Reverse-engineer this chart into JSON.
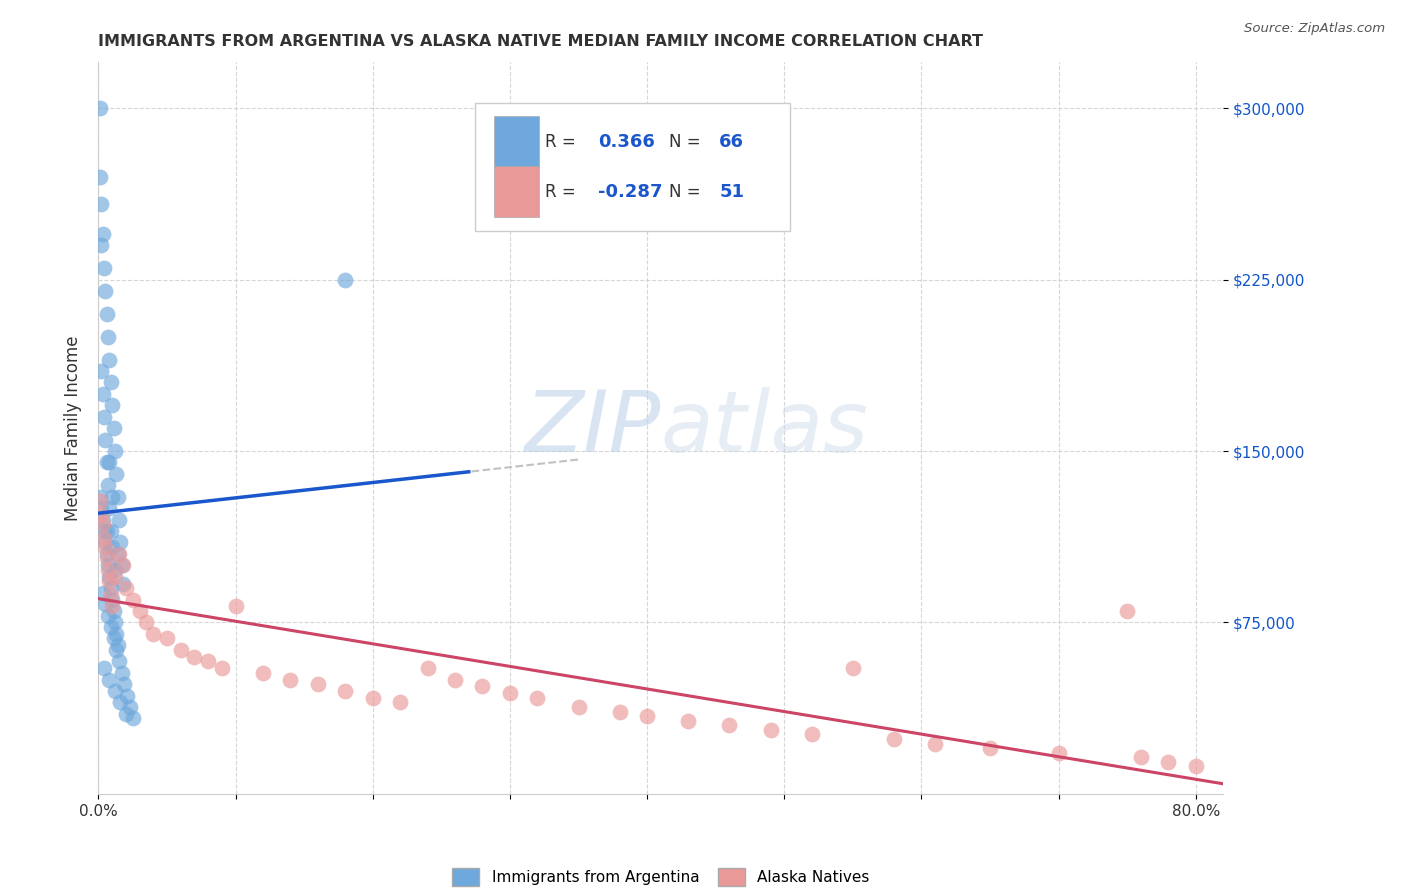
{
  "title": "IMMIGRANTS FROM ARGENTINA VS ALASKA NATIVE MEDIAN FAMILY INCOME CORRELATION CHART",
  "source": "Source: ZipAtlas.com",
  "ylabel": "Median Family Income",
  "ytick_labels": [
    "$75,000",
    "$150,000",
    "$225,000",
    "$300,000"
  ],
  "ytick_values": [
    75000,
    150000,
    225000,
    300000
  ],
  "ymin": 0,
  "ymax": 320000,
  "xmin": 0.0,
  "xmax": 0.82,
  "blue_R": 0.366,
  "blue_N": 66,
  "pink_R": -0.287,
  "pink_N": 51,
  "blue_color": "#6fa8dc",
  "pink_color": "#ea9999",
  "blue_line_color": "#1a56cc",
  "pink_line_color": "#cc4466",
  "dash_color": "#bbbbbb",
  "legend_label_blue": "Immigrants from Argentina",
  "legend_label_pink": "Alaska Natives",
  "watermark_color": "#d0e4f7",
  "background_color": "#ffffff",
  "grid_color": "#cccccc",
  "title_color": "#333333",
  "source_color": "#555555",
  "ytick_color": "#1155cc",
  "blue_scatter_x": [
    0.001,
    0.001,
    0.002,
    0.002,
    0.003,
    0.004,
    0.005,
    0.006,
    0.007,
    0.008,
    0.009,
    0.01,
    0.011,
    0.012,
    0.013,
    0.014,
    0.015,
    0.016,
    0.017,
    0.018,
    0.002,
    0.003,
    0.004,
    0.005,
    0.006,
    0.007,
    0.008,
    0.009,
    0.01,
    0.012,
    0.001,
    0.002,
    0.003,
    0.004,
    0.005,
    0.006,
    0.007,
    0.008,
    0.009,
    0.01,
    0.011,
    0.012,
    0.013,
    0.014,
    0.003,
    0.005,
    0.007,
    0.009,
    0.011,
    0.013,
    0.015,
    0.017,
    0.019,
    0.021,
    0.023,
    0.025,
    0.004,
    0.008,
    0.012,
    0.016,
    0.02,
    0.014,
    0.006,
    0.18,
    0.008,
    0.01
  ],
  "blue_scatter_y": [
    270000,
    300000,
    258000,
    240000,
    245000,
    230000,
    220000,
    210000,
    200000,
    190000,
    180000,
    170000,
    160000,
    150000,
    140000,
    130000,
    120000,
    110000,
    100000,
    92000,
    185000,
    175000,
    165000,
    155000,
    145000,
    135000,
    125000,
    115000,
    108000,
    98000,
    130000,
    125000,
    120000,
    115000,
    110000,
    105000,
    100000,
    95000,
    90000,
    85000,
    80000,
    75000,
    70000,
    65000,
    88000,
    83000,
    78000,
    73000,
    68000,
    63000,
    58000,
    53000,
    48000,
    43000,
    38000,
    33000,
    55000,
    50000,
    45000,
    40000,
    35000,
    105000,
    115000,
    225000,
    145000,
    130000
  ],
  "pink_scatter_x": [
    0.001,
    0.002,
    0.003,
    0.004,
    0.005,
    0.006,
    0.007,
    0.008,
    0.009,
    0.01,
    0.012,
    0.015,
    0.018,
    0.02,
    0.025,
    0.03,
    0.035,
    0.04,
    0.05,
    0.06,
    0.07,
    0.08,
    0.09,
    0.1,
    0.12,
    0.14,
    0.16,
    0.18,
    0.2,
    0.22,
    0.24,
    0.26,
    0.28,
    0.3,
    0.32,
    0.35,
    0.38,
    0.4,
    0.43,
    0.46,
    0.49,
    0.52,
    0.55,
    0.58,
    0.61,
    0.65,
    0.7,
    0.75,
    0.76,
    0.78,
    0.8
  ],
  "pink_scatter_y": [
    128000,
    122000,
    118000,
    112000,
    108000,
    103000,
    98000,
    93000,
    87000,
    82000,
    95000,
    105000,
    100000,
    90000,
    85000,
    80000,
    75000,
    70000,
    68000,
    63000,
    60000,
    58000,
    55000,
    82000,
    53000,
    50000,
    48000,
    45000,
    42000,
    40000,
    55000,
    50000,
    47000,
    44000,
    42000,
    38000,
    36000,
    34000,
    32000,
    30000,
    28000,
    26000,
    55000,
    24000,
    22000,
    20000,
    18000,
    80000,
    16000,
    14000,
    12000
  ]
}
